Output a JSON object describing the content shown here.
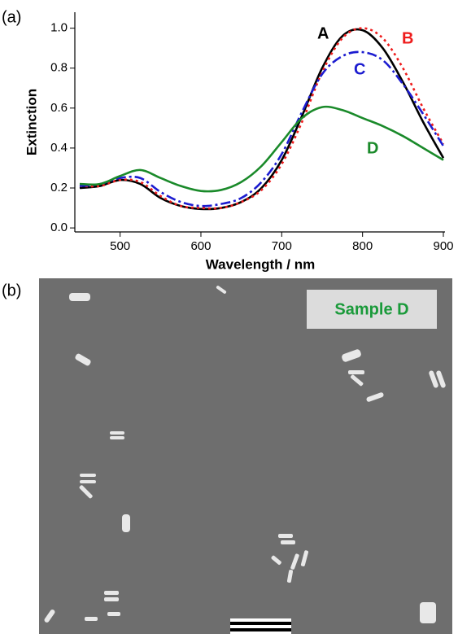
{
  "panels": [
    "(a)",
    "(b)"
  ],
  "chart_data": {
    "type": "line",
    "x_label": "Wavelength / nm",
    "y_label": "Extinction",
    "x": [
      450,
      475,
      500,
      525,
      550,
      575,
      600,
      625,
      650,
      675,
      700,
      725,
      750,
      775,
      800,
      825,
      850,
      875,
      900
    ],
    "series": [
      {
        "name": "A",
        "color": "#000000",
        "dash": "solid",
        "values": [
          0.2,
          0.21,
          0.24,
          0.22,
          0.15,
          0.11,
          0.095,
          0.1,
          0.13,
          0.2,
          0.34,
          0.56,
          0.8,
          0.96,
          0.99,
          0.9,
          0.73,
          0.53,
          0.35
        ]
      },
      {
        "name": "B",
        "color": "#ee1c1c",
        "dash": "dot",
        "values": [
          0.21,
          0.21,
          0.24,
          0.23,
          0.16,
          0.11,
          0.1,
          0.1,
          0.13,
          0.19,
          0.32,
          0.53,
          0.78,
          0.95,
          1.0,
          0.95,
          0.8,
          0.6,
          0.42
        ]
      },
      {
        "name": "C",
        "color": "#1c1cd0",
        "dash": "dashdot",
        "values": [
          0.21,
          0.22,
          0.25,
          0.25,
          0.18,
          0.13,
          0.11,
          0.12,
          0.15,
          0.23,
          0.37,
          0.58,
          0.77,
          0.86,
          0.88,
          0.84,
          0.72,
          0.57,
          0.41
        ]
      },
      {
        "name": "D",
        "color": "#1a8a2a",
        "dash": "solid",
        "values": [
          0.22,
          0.22,
          0.26,
          0.29,
          0.25,
          0.21,
          0.185,
          0.19,
          0.23,
          0.31,
          0.43,
          0.55,
          0.605,
          0.59,
          0.55,
          0.51,
          0.46,
          0.4,
          0.34
        ]
      }
    ],
    "xlim": [
      444,
      902
    ],
    "ylim": [
      -0.02,
      1.08
    ],
    "xticks": [
      500,
      600,
      700,
      800,
      900
    ],
    "yticks": [
      {
        "value": 0,
        "label": "0.0"
      },
      0.2,
      0.4,
      0.6,
      0.8,
      {
        "value": 1,
        "label": "1.0"
      }
    ]
  },
  "image": {
    "label": "Sample D"
  }
}
